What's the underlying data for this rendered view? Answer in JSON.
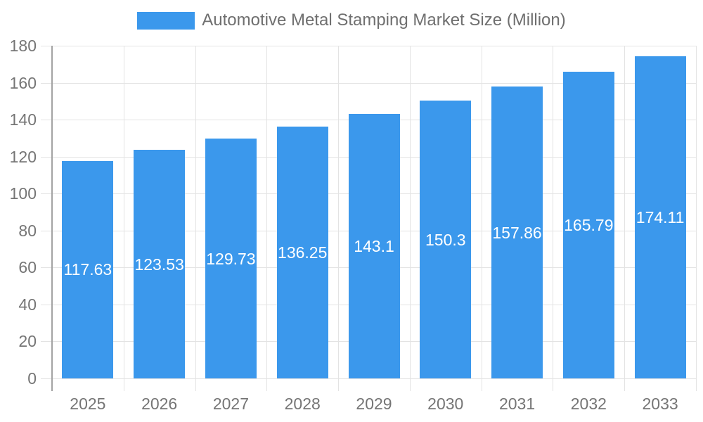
{
  "legend": {
    "label": "Automotive Metal Stamping Market Size (Million)"
  },
  "chart_data": {
    "type": "bar",
    "title": "Automotive Metal Stamping Market Size (Million)",
    "series_name": "Automotive Metal Stamping Market Size (Million)",
    "categories": [
      "2025",
      "2026",
      "2027",
      "2028",
      "2029",
      "2030",
      "2031",
      "2032",
      "2033"
    ],
    "values": [
      117.63,
      123.53,
      129.73,
      136.25,
      143.1,
      150.3,
      157.86,
      165.79,
      174.11
    ],
    "xlabel": "",
    "ylabel": "",
    "ylim": [
      0,
      180
    ],
    "ytick_step": 20,
    "ytick_labels": [
      "0",
      "20",
      "40",
      "60",
      "80",
      "100",
      "120",
      "140",
      "160",
      "180"
    ],
    "grid": true,
    "legend_position": "top",
    "data_labels_position": "center-inside"
  },
  "colors": {
    "bar": "#3B98EC",
    "grid_line": "#E3E3E3",
    "axis_line": "#A3A3A3",
    "tick_text": "#757575",
    "legend_text": "#6F6F6F",
    "data_label_text": "#FFFFFF",
    "background": "#FFFFFF"
  }
}
